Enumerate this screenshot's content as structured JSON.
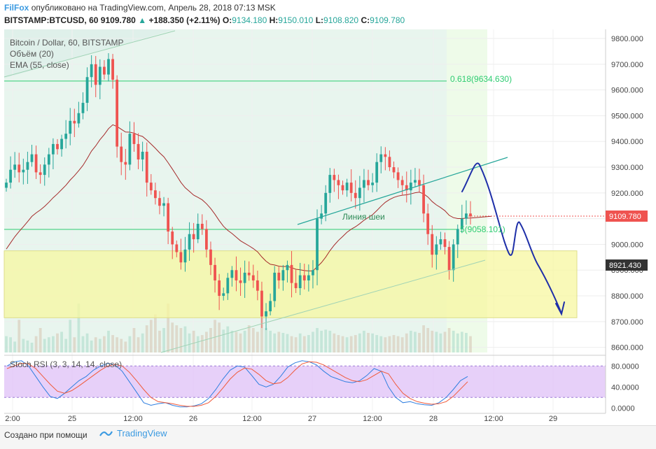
{
  "header": {
    "brand": "FilFox",
    "published": "опубликовано на TradingView.com, Апрель 28, 2018 07:13 MSK",
    "symbol": "BITSTAMP:BTCUSD, 60",
    "last": "9109.780",
    "change_arrow": "▲",
    "change": "+188.350 (+2.11%)",
    "o_label": "O:",
    "o": "9134.180",
    "h_label": "H:",
    "h": "9150.010",
    "l_label": "L:",
    "l": "9108.820",
    "c_label": "C:",
    "c": "9109.780"
  },
  "legend": {
    "title": "Bitcoin / Dollar, 60, BITSTAMP",
    "volume": "Объём (20)",
    "ema": "EMA (55, close)",
    "stoch": "Stoch RSI (3, 3, 14, 14, close)"
  },
  "footer": {
    "made_with": "Создано при помощи",
    "tv": "TradingView"
  },
  "colors": {
    "up": "#26a69a",
    "down": "#ef5350",
    "ema": "#a52a2a",
    "fib_line": "#2ecc71",
    "zone": "#f7f7a0",
    "stoch_band": "#e1c4f7",
    "arrow": "#1e2fa8"
  },
  "chart_data": {
    "type": "candlestick",
    "ylim": [
      8580,
      9830
    ],
    "y_ticks": [
      8600,
      8700,
      8800,
      8900,
      9000,
      9100,
      9200,
      9300,
      9400,
      9500,
      9600,
      9700,
      9800
    ],
    "y_tick_labels": [
      "8600.000",
      "8700.000",
      "8800.000",
      "8900.000",
      "9000.000",
      "9100.000",
      "9200.000",
      "9300.000",
      "9400.000",
      "9500.000",
      "9600.000",
      "9700.000",
      "9800.000"
    ],
    "x_tick_labels": [
      "2:00",
      "25",
      "12:00",
      "26",
      "12:00",
      "27",
      "12:00",
      "28",
      "12:00",
      "29"
    ],
    "price_labels": [
      "9109.780",
      "8921.430"
    ],
    "fib_label": "0.618(9634.630)",
    "fib_value": 9634.63,
    "fib_half_label": "5(9058.101)",
    "fib_half_value": 9058.1,
    "neckline_label": "Линия шеи",
    "closes": [
      9240,
      9290,
      9310,
      9280,
      9290,
      9320,
      9350,
      9280,
      9270,
      9310,
      9350,
      9390,
      9370,
      9410,
      9430,
      9480,
      9470,
      9510,
      9550,
      9650,
      9700,
      9620,
      9690,
      9660,
      9720,
      9640,
      9380,
      9320,
      9310,
      9430,
      9390,
      9330,
      9360,
      9240,
      9210,
      9180,
      9150,
      9160,
      9050,
      9000,
      8970,
      8930,
      8980,
      9040,
      9020,
      9080,
      9060,
      8980,
      8920,
      8860,
      8800,
      8810,
      8870,
      8900,
      8860,
      8850,
      8890,
      8880,
      8860,
      8820,
      8720,
      8740,
      8780,
      8890,
      8860,
      8900,
      8920,
      8850,
      8830,
      8880,
      8860,
      8880,
      8900,
      9100,
      9120,
      9200,
      9270,
      9250,
      9230,
      9210,
      9240,
      9200,
      9180,
      9220,
      9250,
      9230,
      9240,
      9320,
      9350,
      9340,
      9300,
      9280,
      9250,
      9230,
      9210,
      9240,
      9250,
      9230,
      9120,
      9040,
      8960,
      9000,
      9020,
      8990,
      8900,
      9000,
      9060,
      9100,
      9120,
      9109
    ],
    "stoch_ylim": [
      -5,
      95
    ],
    "stoch_ticks": [
      0,
      40,
      80
    ],
    "stoch_tick_labels": [
      "0.0000",
      "40.0000",
      "80.0000"
    ],
    "stoch_k": [
      80,
      88,
      90,
      80,
      60,
      40,
      22,
      18,
      28,
      40,
      52,
      60,
      72,
      80,
      85,
      82,
      70,
      50,
      30,
      10,
      5,
      8,
      10,
      5,
      2,
      2,
      4,
      8,
      18,
      35,
      55,
      72,
      80,
      78,
      62,
      45,
      40,
      45,
      60,
      78,
      86,
      90,
      88,
      82,
      70,
      60,
      55,
      50,
      48,
      52,
      62,
      75,
      70,
      40,
      20,
      10,
      12,
      8,
      6,
      5,
      10,
      20,
      35,
      52,
      60
    ],
    "stoch_d": [
      75,
      80,
      85,
      84,
      75,
      60,
      45,
      32,
      28,
      33,
      42,
      52,
      62,
      72,
      80,
      83,
      80,
      68,
      52,
      35,
      20,
      12,
      10,
      8,
      5,
      3,
      3,
      5,
      10,
      22,
      38,
      55,
      68,
      76,
      74,
      64,
      52,
      46,
      48,
      58,
      72,
      84,
      88,
      87,
      82,
      74,
      66,
      58,
      52,
      50,
      54,
      62,
      70,
      65,
      45,
      28,
      18,
      12,
      9,
      7,
      8,
      12,
      22,
      36,
      50
    ],
    "volume": [
      30,
      28,
      20,
      60,
      25,
      22,
      18,
      30,
      45,
      25,
      28,
      30,
      35,
      38,
      25,
      60,
      28,
      90,
      30,
      35,
      22,
      28,
      25,
      30,
      40,
      32,
      28,
      25,
      20,
      30,
      45,
      28,
      35,
      50,
      60,
      70,
      40,
      45,
      90,
      55,
      50,
      45,
      48,
      35,
      40,
      30,
      32,
      38,
      45,
      60,
      55,
      42,
      48,
      40,
      38,
      35,
      40,
      50,
      45,
      38,
      80,
      45,
      40,
      35,
      38,
      36,
      34,
      30,
      28,
      35,
      30,
      32,
      38,
      45,
      40,
      42,
      40,
      35,
      32,
      30,
      28,
      30,
      32,
      35,
      40,
      36,
      35,
      32,
      30,
      28,
      30,
      32,
      30,
      28,
      35,
      40,
      38,
      36,
      50,
      45,
      40,
      38,
      35,
      38,
      45,
      40,
      35,
      38,
      36,
      30
    ]
  }
}
